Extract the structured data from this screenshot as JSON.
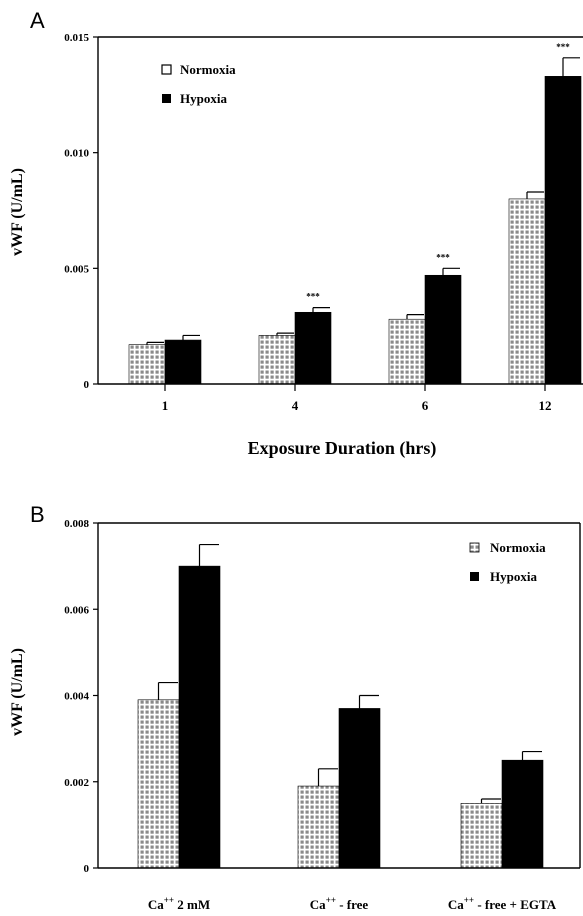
{
  "chart_data": [
    {
      "panel_label": "A",
      "type": "bar",
      "categories": [
        "1",
        "4",
        "6",
        "12"
      ],
      "series": [
        {
          "name": "Normoxia",
          "values": [
            0.0017,
            0.0021,
            0.0028,
            0.008
          ],
          "errors": [
            0.0001,
            0.0001,
            0.0002,
            0.0003
          ],
          "pattern": "gray-dots"
        },
        {
          "name": "Hypoxia",
          "values": [
            0.0019,
            0.0031,
            0.0047,
            0.0133
          ],
          "errors": [
            0.0002,
            0.0002,
            0.0003,
            0.0008
          ],
          "pattern": "solid-black"
        }
      ],
      "significance": [
        "",
        "***",
        "***",
        "***"
      ],
      "xlabel": "Exposure Duration (hrs)",
      "ylabel": "vWF (U/mL)",
      "ylim": [
        0,
        0.015
      ],
      "yticks": [
        "0",
        "0.005",
        "0.010",
        "0.015"
      ],
      "legend_position": "top-left",
      "grid": false
    },
    {
      "panel_label": "B",
      "type": "bar",
      "categories": [
        "2 mM",
        " - free",
        " - free + EGTA"
      ],
      "category_prefix": "Ca",
      "category_superscript": "++",
      "series": [
        {
          "name": "Normoxia",
          "values": [
            0.0039,
            0.0019,
            0.0015
          ],
          "errors": [
            0.0004,
            0.0004,
            0.0001
          ],
          "pattern": "gray-dots"
        },
        {
          "name": "Hypoxia",
          "values": [
            0.007,
            0.0037,
            0.0025
          ],
          "errors": [
            0.0005,
            0.0003,
            0.0002
          ],
          "pattern": "solid-black"
        }
      ],
      "xlabel": "",
      "ylabel": "vWF (U/mL)",
      "ylim": [
        0,
        0.008
      ],
      "yticks": [
        "0",
        "0.002",
        "0.004",
        "0.006",
        "0.008"
      ],
      "legend_position": "top-right",
      "grid": false
    }
  ]
}
